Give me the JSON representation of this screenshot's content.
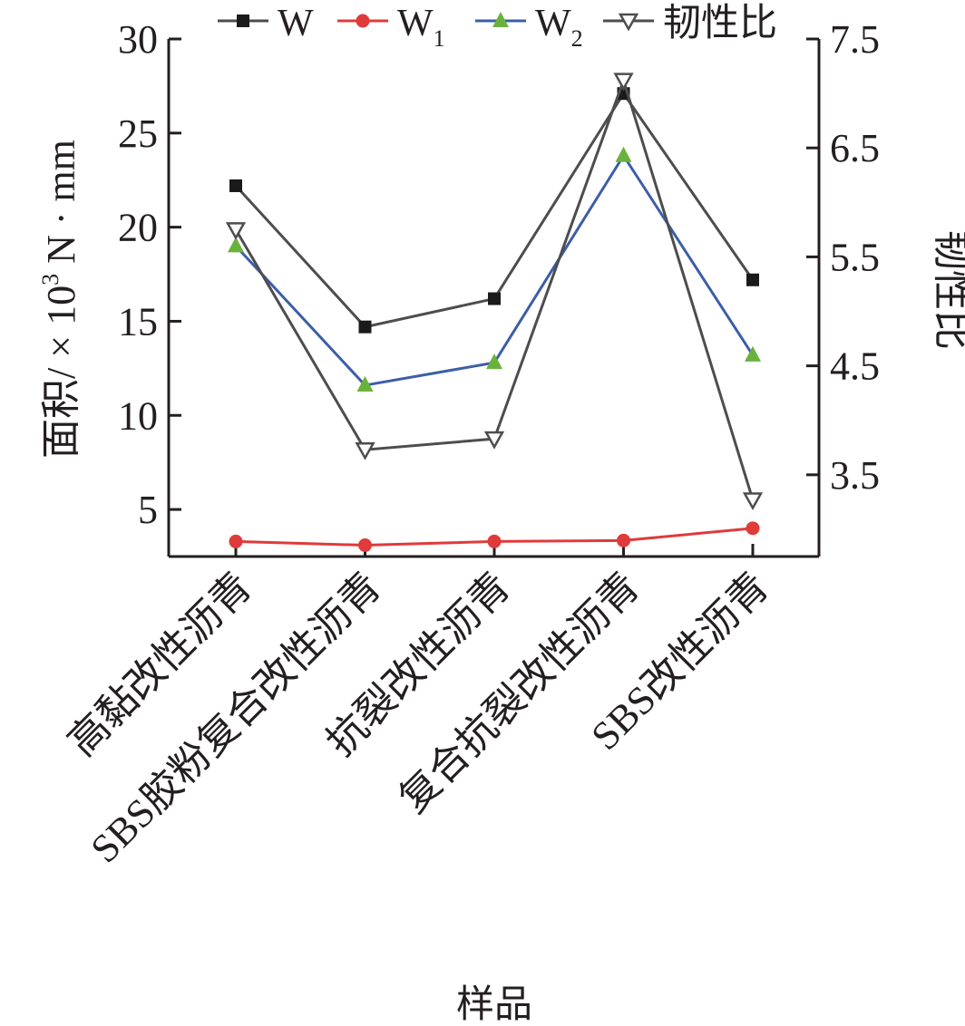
{
  "chart_data": {
    "type": "line",
    "categories": [
      "高黏改性沥青",
      "SBS胶粉复合改性沥青",
      "抗裂改性沥青",
      "复合抗裂改性沥青",
      "SBS改性沥青"
    ],
    "xlabel": "样品",
    "ylabel_left": {
      "main": "面积/ × 10",
      "sup": "3",
      "rest": " N · mm"
    },
    "ylabel_right": "韧性比",
    "ylim_left": [
      2.5,
      30
    ],
    "ylim_right": [
      2.75,
      7.5
    ],
    "yticks_left": [
      "5",
      "10",
      "15",
      "20",
      "25",
      "30"
    ],
    "yticks_right": [
      "3.5",
      "4.5",
      "5.5",
      "6.5",
      "7.5"
    ],
    "legend_position": "top",
    "series": [
      {
        "key": "W",
        "name": "W",
        "sub": "",
        "axis": "left",
        "color": "#4d4d4f",
        "marker": "square",
        "marker_color": "#1a1a1a",
        "values": [
          22.2,
          14.7,
          16.2,
          27.1,
          17.2
        ]
      },
      {
        "key": "W1",
        "name": "W",
        "sub": "1",
        "axis": "left",
        "color": "#e03a3a",
        "marker": "circle",
        "marker_color": "#e03a3a",
        "values": [
          3.3,
          3.1,
          3.3,
          3.35,
          4.0
        ]
      },
      {
        "key": "W2",
        "name": "W",
        "sub": "2",
        "axis": "left",
        "color": "#3c5ea8",
        "marker": "triangle",
        "marker_color": "#6ab23e",
        "values": [
          19.0,
          11.6,
          12.8,
          23.8,
          13.2
        ]
      },
      {
        "key": "toughness",
        "name": "韧性比",
        "sub": "",
        "axis": "right",
        "color": "#4d4d4f",
        "marker": "triangle-down-open",
        "marker_color": "#4d4d4f",
        "values": [
          5.75,
          3.73,
          3.83,
          7.12,
          3.27
        ]
      }
    ]
  }
}
